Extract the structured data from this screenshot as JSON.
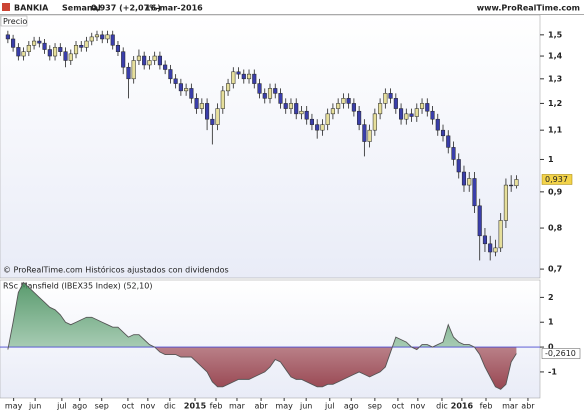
{
  "header": {
    "symbol": "BANKIA",
    "period": "Semanal",
    "last": "0,937 (+2,07%)",
    "date": "16-mar-2016",
    "site": "www.ProRealTime.com"
  },
  "chart_data": [
    {
      "type": "candlestick",
      "title": "Precio",
      "note": "© ProRealTime.com Históricos ajustados con dividendos",
      "open": [
        1.5,
        1.48,
        1.44,
        1.4,
        1.42,
        1.45,
        1.47,
        1.46,
        1.43,
        1.4,
        1.44,
        1.42,
        1.38,
        1.41,
        1.45,
        1.44,
        1.47,
        1.49,
        1.5,
        1.48,
        1.5,
        1.45,
        1.42,
        1.35,
        1.3,
        1.38,
        1.4,
        1.36,
        1.38,
        1.4,
        1.36,
        1.34,
        1.3,
        1.28,
        1.25,
        1.26,
        1.22,
        1.18,
        1.2,
        1.14,
        1.12,
        1.18,
        1.25,
        1.28,
        1.33,
        1.32,
        1.3,
        1.32,
        1.28,
        1.24,
        1.22,
        1.26,
        1.24,
        1.2,
        1.18,
        1.2,
        1.16,
        1.17,
        1.14,
        1.12,
        1.1,
        1.12,
        1.16,
        1.18,
        1.2,
        1.22,
        1.2,
        1.17,
        1.12,
        1.06,
        1.1,
        1.16,
        1.2,
        1.24,
        1.22,
        1.18,
        1.14,
        1.16,
        1.15,
        1.18,
        1.2,
        1.17,
        1.14,
        1.1,
        1.08,
        1.04,
        1.0,
        0.96,
        0.92,
        0.94,
        0.86,
        0.78,
        0.76,
        0.74,
        0.75,
        0.82,
        0.92,
        0.918
      ],
      "high": [
        1.52,
        1.5,
        1.46,
        1.44,
        1.47,
        1.49,
        1.49,
        1.48,
        1.45,
        1.46,
        1.46,
        1.44,
        1.43,
        1.47,
        1.47,
        1.49,
        1.51,
        1.52,
        1.52,
        1.52,
        1.52,
        1.47,
        1.44,
        1.37,
        1.4,
        1.43,
        1.42,
        1.4,
        1.42,
        1.42,
        1.38,
        1.36,
        1.32,
        1.3,
        1.28,
        1.28,
        1.24,
        1.22,
        1.22,
        1.16,
        1.2,
        1.27,
        1.3,
        1.35,
        1.35,
        1.34,
        1.34,
        1.34,
        1.3,
        1.26,
        1.28,
        1.28,
        1.26,
        1.22,
        1.22,
        1.22,
        1.19,
        1.19,
        1.16,
        1.14,
        1.14,
        1.18,
        1.2,
        1.22,
        1.24,
        1.24,
        1.22,
        1.19,
        1.14,
        1.12,
        1.18,
        1.22,
        1.26,
        1.26,
        1.24,
        1.2,
        1.18,
        1.18,
        1.2,
        1.22,
        1.22,
        1.19,
        1.16,
        1.12,
        1.1,
        1.06,
        1.02,
        0.98,
        0.96,
        0.96,
        0.88,
        0.8,
        0.78,
        0.77,
        0.84,
        0.94,
        0.95,
        0.95
      ],
      "low": [
        1.46,
        1.42,
        1.38,
        1.38,
        1.4,
        1.43,
        1.44,
        1.41,
        1.38,
        1.38,
        1.4,
        1.35,
        1.36,
        1.39,
        1.42,
        1.42,
        1.45,
        1.47,
        1.46,
        1.46,
        1.43,
        1.4,
        1.32,
        1.22,
        1.28,
        1.36,
        1.34,
        1.34,
        1.36,
        1.34,
        1.32,
        1.28,
        1.26,
        1.23,
        1.23,
        1.2,
        1.16,
        1.16,
        1.1,
        1.05,
        1.1,
        1.16,
        1.23,
        1.26,
        1.3,
        1.28,
        1.28,
        1.26,
        1.22,
        1.2,
        1.2,
        1.22,
        1.18,
        1.16,
        1.16,
        1.14,
        1.14,
        1.12,
        1.1,
        1.07,
        1.08,
        1.1,
        1.14,
        1.16,
        1.18,
        1.18,
        1.15,
        1.1,
        1.01,
        1.04,
        1.08,
        1.14,
        1.18,
        1.2,
        1.16,
        1.12,
        1.12,
        1.13,
        1.13,
        1.16,
        1.15,
        1.12,
        1.08,
        1.06,
        1.02,
        0.98,
        0.94,
        0.9,
        0.9,
        0.84,
        0.72,
        0.74,
        0.72,
        0.73,
        0.74,
        0.8,
        0.9,
        0.91
      ],
      "close": [
        1.48,
        1.44,
        1.4,
        1.42,
        1.45,
        1.47,
        1.46,
        1.43,
        1.4,
        1.44,
        1.42,
        1.38,
        1.41,
        1.45,
        1.44,
        1.47,
        1.49,
        1.5,
        1.48,
        1.5,
        1.45,
        1.42,
        1.35,
        1.3,
        1.38,
        1.4,
        1.36,
        1.38,
        1.4,
        1.36,
        1.34,
        1.3,
        1.28,
        1.25,
        1.26,
        1.22,
        1.18,
        1.2,
        1.14,
        1.12,
        1.18,
        1.25,
        1.28,
        1.33,
        1.32,
        1.3,
        1.32,
        1.28,
        1.24,
        1.22,
        1.26,
        1.24,
        1.2,
        1.18,
        1.2,
        1.16,
        1.17,
        1.14,
        1.12,
        1.1,
        1.12,
        1.16,
        1.18,
        1.2,
        1.22,
        1.2,
        1.17,
        1.12,
        1.06,
        1.1,
        1.16,
        1.2,
        1.24,
        1.22,
        1.18,
        1.14,
        1.16,
        1.15,
        1.18,
        1.2,
        1.17,
        1.14,
        1.1,
        1.08,
        1.04,
        1.0,
        0.96,
        0.92,
        0.94,
        0.86,
        0.78,
        0.76,
        0.74,
        0.75,
        0.82,
        0.92,
        0.918,
        0.937
      ],
      "up_color": "#e6df9c",
      "down_color": "#3a3eaa",
      "last_value_label": "0,937",
      "log_scale": true,
      "ylim": [
        0.68,
        1.6
      ],
      "xlim": [
        -1.5,
        101.5
      ],
      "yticks": [
        {
          "value": 1.5,
          "label": "1,5"
        },
        {
          "value": 1.4,
          "label": "1,4"
        },
        {
          "value": 1.3,
          "label": "1,3"
        },
        {
          "value": 1.2,
          "label": "1,2"
        },
        {
          "value": 1.1,
          "label": "1,1"
        },
        1,
        {
          "value": 0.9,
          "label": "0,9"
        },
        {
          "value": 0.8,
          "label": "0,8"
        },
        {
          "value": 0.7,
          "label": "0,7"
        }
      ]
    },
    {
      "type": "area",
      "title": "RSc Mansfield (IBEX35 Index) (52,10)",
      "values": [
        -0.1,
        1.0,
        2.2,
        2.6,
        2.4,
        2.2,
        2.0,
        1.8,
        1.6,
        1.5,
        1.3,
        1.0,
        0.9,
        1.0,
        1.1,
        1.2,
        1.2,
        1.1,
        1.0,
        0.9,
        0.8,
        0.8,
        0.6,
        0.4,
        0.5,
        0.5,
        0.3,
        0.1,
        0.0,
        -0.2,
        -0.3,
        -0.3,
        -0.3,
        -0.4,
        -0.4,
        -0.4,
        -0.6,
        -0.8,
        -1.0,
        -1.4,
        -1.6,
        -1.6,
        -1.5,
        -1.4,
        -1.3,
        -1.3,
        -1.3,
        -1.2,
        -1.1,
        -1.0,
        -0.8,
        -0.5,
        -0.6,
        -0.9,
        -1.2,
        -1.3,
        -1.3,
        -1.4,
        -1.5,
        -1.6,
        -1.6,
        -1.5,
        -1.5,
        -1.4,
        -1.3,
        -1.2,
        -1.1,
        -1.0,
        -1.1,
        -1.2,
        -1.1,
        -1.0,
        -0.8,
        -0.2,
        0.4,
        0.3,
        0.2,
        0.0,
        -0.1,
        0.1,
        0.1,
        0.0,
        0.1,
        0.2,
        0.9,
        0.4,
        0.2,
        0.1,
        0.1,
        0.0,
        -0.3,
        -0.8,
        -1.2,
        -1.6,
        -1.7,
        -1.5,
        -0.6,
        -0.261
      ],
      "last_value_label": "-0,2610",
      "up_color": "#3d8a55",
      "down_color": "#8a2a35",
      "line_color": "#555555",
      "zero_color": "#4a4ad0",
      "ylim": [
        -2.05,
        2.7
      ],
      "yticks": [
        2,
        1,
        0,
        -1
      ],
      "xlim": [
        -1.5,
        101.5
      ],
      "xticks": [
        {
          "value": 1.1,
          "label": "may"
        },
        {
          "value": 5.2,
          "label": "jun"
        },
        {
          "value": 10.3,
          "label": "jul"
        },
        {
          "value": 13.7,
          "label": "ago"
        },
        {
          "value": 17.9,
          "label": "sep"
        },
        {
          "value": 22.9,
          "label": "oct"
        },
        {
          "value": 26.7,
          "label": "nov"
        },
        {
          "value": 30.9,
          "label": "dic"
        },
        {
          "value": 35.7,
          "label": "2015"
        },
        {
          "value": 39.7,
          "label": "feb"
        },
        {
          "value": 43.7,
          "label": "mar"
        },
        {
          "value": 48.3,
          "label": "abr"
        },
        {
          "value": 52.7,
          "label": "may"
        },
        {
          "value": 56.9,
          "label": "jun"
        },
        {
          "value": 61.4,
          "label": "jul"
        },
        {
          "value": 65.5,
          "label": "ago"
        },
        {
          "value": 70,
          "label": "sep"
        },
        {
          "value": 74.4,
          "label": "oct"
        },
        {
          "value": 78.2,
          "label": "nov"
        },
        {
          "value": 82.8,
          "label": "dic"
        },
        {
          "value": 86.6,
          "label": "2016"
        },
        {
          "value": 91.2,
          "label": "feb"
        },
        {
          "value": 95.8,
          "label": "mar"
        },
        {
          "value": 99.2,
          "label": "abr"
        }
      ]
    }
  ]
}
